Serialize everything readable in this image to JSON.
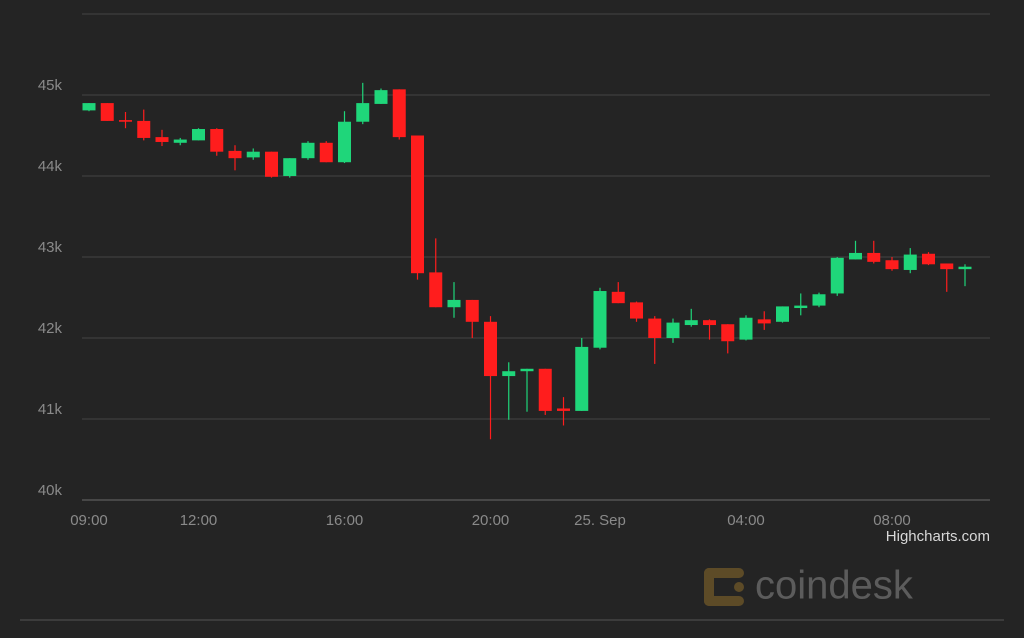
{
  "chart_data": {
    "type": "candlestick",
    "categories": [
      "09:00",
      null,
      null,
      null,
      null,
      null,
      "12:00",
      null,
      null,
      null,
      null,
      null,
      null,
      null,
      "16:00",
      null,
      null,
      null,
      null,
      null,
      null,
      null,
      "20:00",
      null,
      null,
      null,
      null,
      null,
      "25. Sep",
      null,
      null,
      null,
      null,
      null,
      null,
      null,
      "04:00",
      null,
      null,
      null,
      null,
      null,
      null,
      null,
      "08:00",
      null,
      null,
      null,
      null
    ],
    "open": [
      44810,
      44900,
      44690,
      44680,
      44480,
      44410,
      44440,
      44580,
      44310,
      44230,
      44300,
      44000,
      44220,
      44410,
      44170,
      44670,
      44890,
      45070,
      44500,
      42810,
      42380,
      42470,
      42200,
      41530,
      41590,
      41620,
      41130,
      41100,
      41880,
      42570,
      42440,
      42240,
      42000,
      42160,
      42220,
      42170,
      41980,
      42230,
      42200,
      42370,
      42400,
      42550,
      42970,
      43050,
      42960,
      42840,
      43040,
      42920,
      42850
    ],
    "high": [
      44900,
      44900,
      44790,
      44820,
      44570,
      44470,
      44590,
      44590,
      44380,
      44340,
      44300,
      44220,
      44430,
      44430,
      44800,
      45150,
      45080,
      45070,
      44500,
      43230,
      42690,
      42470,
      42270,
      41700,
      41620,
      41620,
      41270,
      42000,
      42620,
      42690,
      42450,
      42270,
      42240,
      42360,
      42230,
      42170,
      42280,
      42330,
      42390,
      42550,
      42560,
      43000,
      43200,
      43200,
      43000,
      43110,
      43060,
      42920,
      42910
    ],
    "low": [
      44800,
      44680,
      44590,
      44440,
      44370,
      44380,
      44440,
      44250,
      44070,
      44200,
      43980,
      43980,
      44200,
      44170,
      44160,
      44640,
      44890,
      44450,
      42720,
      42380,
      42250,
      42000,
      40750,
      40990,
      41090,
      41050,
      40920,
      41100,
      41860,
      42430,
      42200,
      41680,
      41940,
      42140,
      41980,
      41810,
      41970,
      42100,
      42190,
      42280,
      42380,
      42520,
      42970,
      42920,
      42830,
      42800,
      42900,
      42570,
      42640
    ],
    "close": [
      44900,
      44680,
      44670,
      44470,
      44420,
      44450,
      44580,
      44300,
      44220,
      44300,
      43990,
      44220,
      44410,
      44170,
      44670,
      44900,
      45060,
      44480,
      42800,
      42380,
      42470,
      42200,
      41530,
      41590,
      41620,
      41100,
      41100,
      41890,
      42580,
      42430,
      42240,
      42000,
      42190,
      42220,
      42160,
      41960,
      42250,
      42180,
      42390,
      42400,
      42540,
      42990,
      43050,
      42940,
      42850,
      43030,
      42910,
      42850,
      42880
    ],
    "up_color": "#1fd67a",
    "down_color": "#ff1d1d",
    "ylim": [
      40000,
      46000
    ],
    "yticks": [
      {
        "value": 40000,
        "label": "40k"
      },
      {
        "value": 41000,
        "label": "41k"
      },
      {
        "value": 42000,
        "label": "42k"
      },
      {
        "value": 43000,
        "label": "43k"
      },
      {
        "value": 44000,
        "label": "44k"
      },
      {
        "value": 45000,
        "label": "45k"
      }
    ],
    "grid": true,
    "credits": "Highcharts.com",
    "watermark": "coindesk"
  }
}
